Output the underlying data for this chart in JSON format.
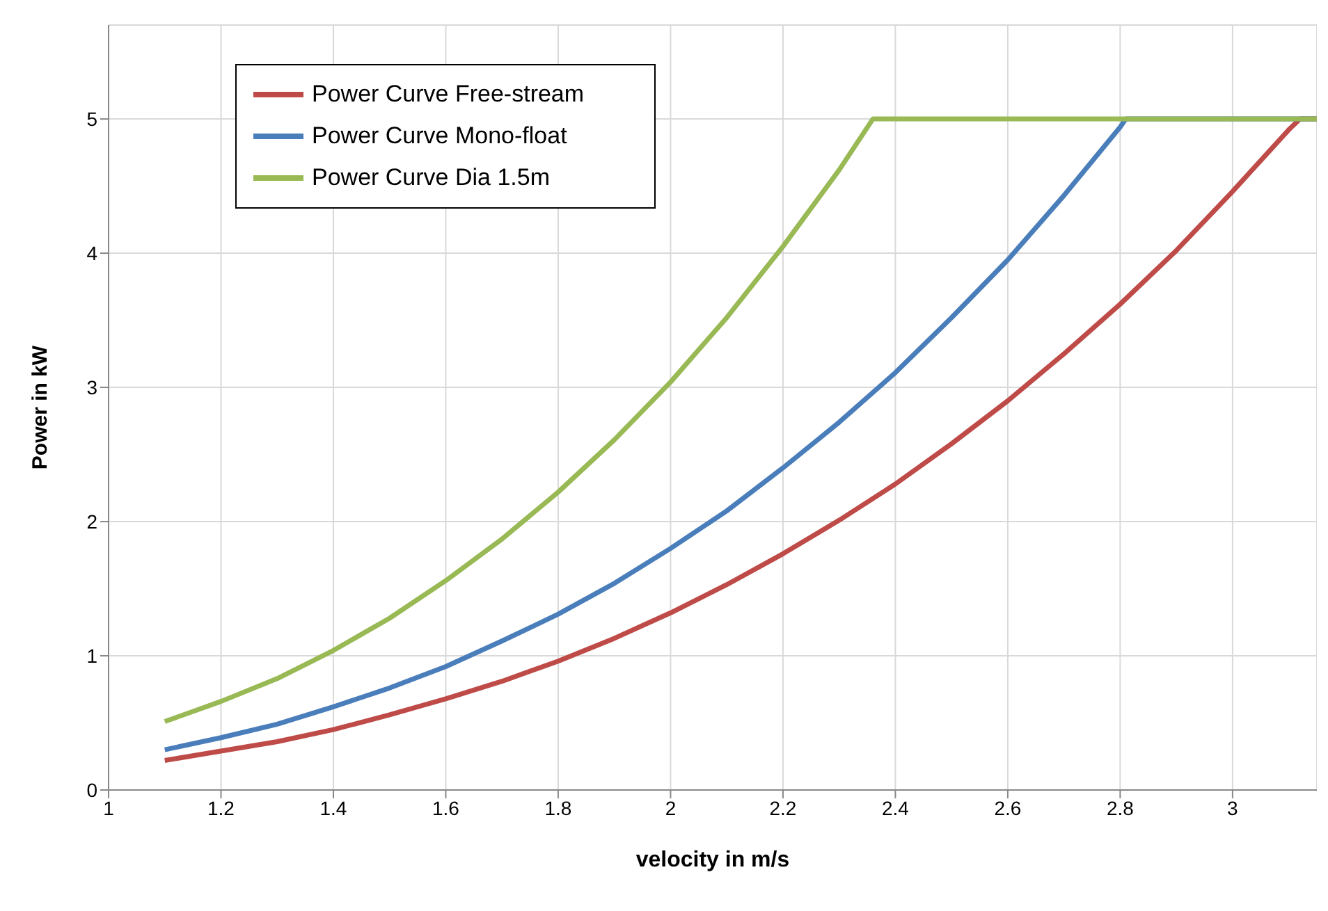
{
  "chart_data": {
    "type": "line",
    "xlabel": "velocity in m/s",
    "ylabel": "Power in kW",
    "xlim": [
      1,
      3.15
    ],
    "ylim": [
      0,
      5.7
    ],
    "xticks": [
      1,
      1.2,
      1.4,
      1.6,
      1.8,
      2,
      2.2,
      2.4,
      2.6,
      2.8,
      3
    ],
    "yticks": [
      0,
      1,
      2,
      3,
      4,
      5
    ],
    "grid": true,
    "legend": "top left",
    "marker": "none",
    "line_style": "solid",
    "series": [
      {
        "name": "Power Curve Free-stream",
        "color": "#be4b48",
        "x": [
          1.1,
          1.2,
          1.3,
          1.4,
          1.5,
          1.6,
          1.7,
          1.8,
          1.9,
          2.0,
          2.1,
          2.2,
          2.3,
          2.4,
          2.5,
          2.6,
          2.7,
          2.8,
          2.9,
          3.0,
          3.1,
          3.12,
          3.15
        ],
        "values": [
          0.22,
          0.29,
          0.36,
          0.45,
          0.56,
          0.68,
          0.81,
          0.96,
          1.13,
          1.32,
          1.53,
          1.76,
          2.01,
          2.28,
          2.58,
          2.9,
          3.25,
          3.62,
          4.02,
          4.46,
          4.92,
          5.0,
          5.0
        ]
      },
      {
        "name": "Power Curve Mono-float",
        "color": "#4a7ebb",
        "x": [
          1.1,
          1.2,
          1.3,
          1.4,
          1.5,
          1.6,
          1.7,
          1.8,
          1.9,
          2.0,
          2.1,
          2.2,
          2.3,
          2.4,
          2.5,
          2.6,
          2.7,
          2.8,
          2.81,
          3.15
        ],
        "values": [
          0.3,
          0.39,
          0.49,
          0.62,
          0.76,
          0.92,
          1.11,
          1.31,
          1.54,
          1.8,
          2.08,
          2.4,
          2.74,
          3.11,
          3.52,
          3.95,
          4.43,
          4.94,
          5.0,
          5.0
        ]
      },
      {
        "name": "Power Curve Dia 1.5m",
        "color": "#98b954",
        "x": [
          1.1,
          1.2,
          1.3,
          1.4,
          1.5,
          1.6,
          1.7,
          1.8,
          1.9,
          2.0,
          2.1,
          2.2,
          2.3,
          2.36,
          3.15
        ],
        "values": [
          0.51,
          0.66,
          0.83,
          1.04,
          1.28,
          1.56,
          1.87,
          2.22,
          2.61,
          3.04,
          3.52,
          4.05,
          4.62,
          5.0,
          5.0
        ]
      }
    ]
  }
}
